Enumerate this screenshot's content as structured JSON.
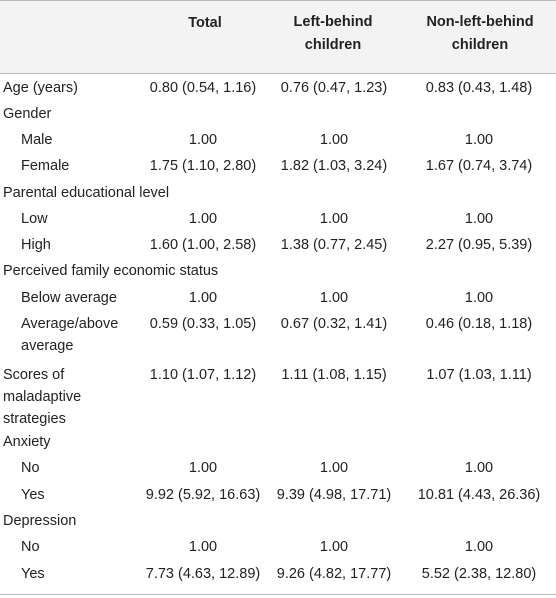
{
  "headers": {
    "total": "Total",
    "left_behind_line1": "Left-behind",
    "left_behind_line2": "children",
    "non_left_behind_line1": "Non-left-behind",
    "non_left_behind_line2": "children"
  },
  "rows": {
    "age": {
      "label": "Age (years)",
      "total": "0.80 (0.54, 1.16)",
      "left": "0.76 (0.47, 1.23)",
      "non": "0.83 (0.43, 1.48)"
    },
    "gender": {
      "label": "Gender"
    },
    "male": {
      "label": "Male",
      "total": "1.00",
      "left": "1.00",
      "non": "1.00"
    },
    "female": {
      "label": "Female",
      "total": "1.75 (1.10, 2.80)",
      "left": "1.82 (1.03, 3.24)",
      "non": "1.67 (0.74, 3.74)"
    },
    "parental_edu": {
      "label": "Parental educational level"
    },
    "low": {
      "label": "Low",
      "total": "1.00",
      "left": "1.00",
      "non": "1.00"
    },
    "high": {
      "label": "High",
      "total": "1.60 (1.00, 2.58)",
      "left": "1.38 (0.77, 2.45)",
      "non": "2.27 (0.95, 5.39)"
    },
    "perceived": {
      "label": "Perceived family economic status"
    },
    "below_avg": {
      "label": "Below average",
      "total": "1.00",
      "left": "1.00",
      "non": "1.00"
    },
    "avg_above": {
      "label_line1": "Average/above",
      "label_line2": "average",
      "total": "0.59 (0.33, 1.05)",
      "left": "0.67 (0.32, 1.41)",
      "non": "0.46 (0.18, 1.18)"
    },
    "maladaptive": {
      "label_line1": "Scores of",
      "label_line2": "maladaptive",
      "label_line3": "strategies",
      "total": "1.10 (1.07, 1.12)",
      "left": "1.11 (1.08, 1.15)",
      "non": "1.07 (1.03, 1.11)"
    },
    "anxiety": {
      "label": "Anxiety"
    },
    "anx_no": {
      "label": "No",
      "total": "1.00",
      "left": "1.00",
      "non": "1.00"
    },
    "anx_yes": {
      "label": "Yes",
      "total": "9.92 (5.92, 16.63)",
      "left": "9.39 (4.98, 17.71)",
      "non": "10.81 (4.43, 26.36)"
    },
    "depression": {
      "label": "Depression"
    },
    "dep_no": {
      "label": "No",
      "total": "1.00",
      "left": "1.00",
      "non": "1.00"
    },
    "dep_yes": {
      "label": "Yes",
      "total": "7.73 (4.63, 12.89)",
      "left": "9.26 (4.82, 17.77)",
      "non": "5.52 (2.38, 12.80)"
    }
  }
}
